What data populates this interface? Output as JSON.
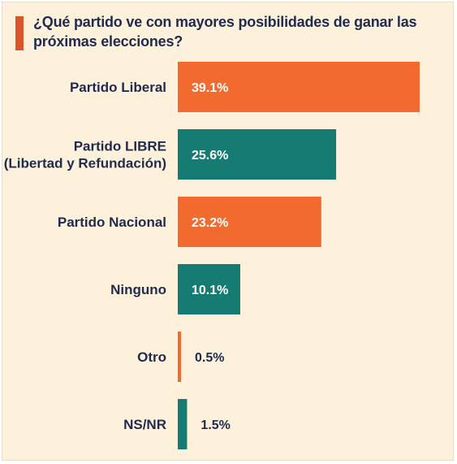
{
  "title": "¿Qué partido ve con mayores posibilidades de ganar las próximas elecciones?",
  "colors": {
    "background": "#fdf1dc",
    "title_accent": "#d9562c",
    "text": "#1e2b4f",
    "orange": "#f26a2e",
    "teal": "#167b73"
  },
  "chart_data": {
    "type": "bar",
    "orientation": "horizontal",
    "categories": [
      [
        "Partido Liberal"
      ],
      [
        "Partido LIBRE",
        "(Libertad y Refundación)"
      ],
      [
        "Partido Nacional"
      ],
      [
        "Ninguno"
      ],
      [
        "Otro"
      ],
      [
        "NS/NR"
      ]
    ],
    "values": [
      39.1,
      25.6,
      23.2,
      10.1,
      0.5,
      1.5
    ],
    "value_labels": [
      "39.1%",
      "25.6%",
      "23.2%",
      "10.1%",
      "0.5%",
      "1.5%"
    ],
    "bar_colors": [
      "#f26a2e",
      "#167b73",
      "#f26a2e",
      "#167b73",
      "#f26a2e",
      "#167b73"
    ],
    "xlim": [
      0,
      39.1
    ],
    "grid": false,
    "legend": "none"
  }
}
